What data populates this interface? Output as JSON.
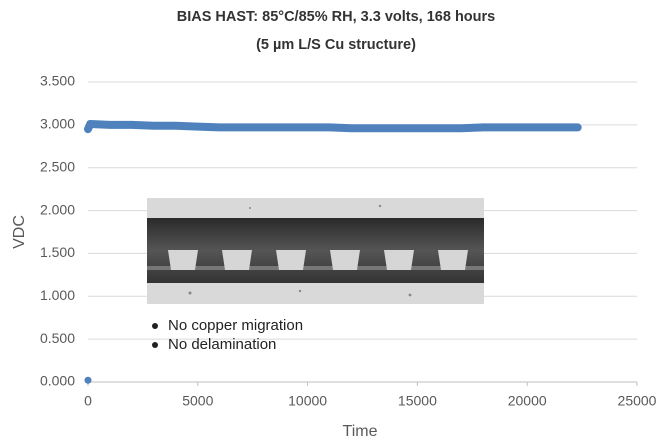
{
  "chart_data": {
    "type": "line",
    "title": "BIAS HAST: 85°C/85% RH, 3.3 volts, 168 hours",
    "subtitle": "(5 µm L/S Cu structure)",
    "x_label": "Time",
    "y_label": "VDC",
    "annotations": [
      "No copper migration",
      "No delamination"
    ],
    "color": "#4f81bd",
    "x": [
      0,
      null,
      0,
      100,
      1000,
      2000,
      3000,
      4000,
      5000,
      6000,
      7000,
      8000,
      9000,
      10000,
      11000,
      12000,
      13000,
      14000,
      15000,
      16000,
      17000,
      18000,
      19000,
      20000,
      21000,
      22300
    ],
    "values": [
      0.02,
      null,
      2.95,
      3.01,
      3.0,
      3.0,
      2.99,
      2.99,
      2.98,
      2.97,
      2.97,
      2.97,
      2.97,
      2.97,
      2.97,
      2.96,
      2.96,
      2.96,
      2.96,
      2.96,
      2.96,
      2.97,
      2.97,
      2.97,
      2.97,
      2.97
    ],
    "xlim": [
      0,
      25000
    ],
    "xticks": [
      0,
      5000,
      10000,
      15000,
      20000,
      25000
    ],
    "ylim": [
      0,
      3.5
    ],
    "yticks": [
      {
        "value": 0,
        "label": "0.000"
      },
      {
        "value": 0.5,
        "label": "0.500"
      },
      {
        "value": 1,
        "label": "1.000"
      },
      {
        "value": 1.5,
        "label": "1.500"
      },
      {
        "value": 2,
        "label": "2.000"
      },
      {
        "value": 2.5,
        "label": "2.500"
      },
      {
        "value": 3,
        "label": "3.000"
      },
      {
        "value": 3.5,
        "label": "3.500"
      }
    ],
    "grid": true
  }
}
